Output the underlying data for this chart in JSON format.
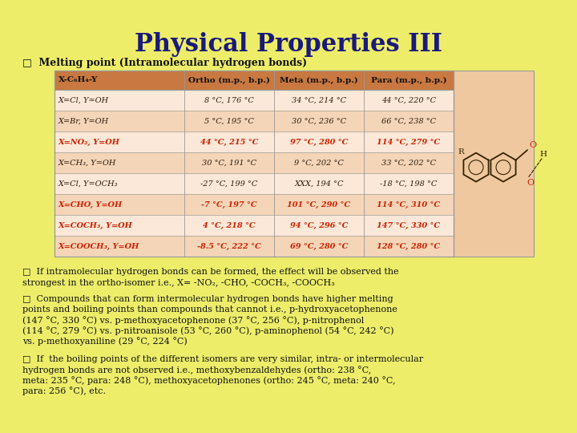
{
  "title": "Physical Properties III",
  "subtitle": "□  Melting point (Intramolecular hydrogen bonds)",
  "bg_color": "#eded6a",
  "table_header_bg": "#c87840",
  "table_row_light": "#f5d5b8",
  "table_row_lighter": "#fce8d8",
  "table_border": "#999999",
  "table_header_text": "#111111",
  "table_normal_text": "#2a1a0a",
  "table_red_text": "#cc2200",
  "mol_bg": "#f0c8a0",
  "col_headers": [
    "X-C₆H₄-Y",
    "Ortho (m.p., b.p.)",
    "Meta (m.p., b.p.)",
    "Para (m.p., b.p.)"
  ],
  "table_rows": [
    {
      "compound": "X=Cl, Y=OH",
      "ortho": "8 °C, 176 °C",
      "meta": "34 °C, 214 °C",
      "para": "44 °C, 220 °C",
      "red": false
    },
    {
      "compound": "X=Br, Y=OH",
      "ortho": "5 °C, 195 °C",
      "meta": "30 °C, 236 °C",
      "para": "66 °C, 238 °C",
      "red": false
    },
    {
      "compound": "X=NO₂, Y=OH",
      "ortho": "44 °C, 215 °C",
      "meta": "97 °C, 280 °C",
      "para": "114 °C, 279 °C",
      "red": true
    },
    {
      "compound": "X=CH₃, Y=OH",
      "ortho": "30 °C, 191 °C",
      "meta": "9 °C, 202 °C",
      "para": "33 °C, 202 °C",
      "red": false
    },
    {
      "compound": "X=Cl, Y=OCH₃",
      "ortho": "-27 °C, 199 °C",
      "meta": "XXX, 194 °C",
      "para": "-18 °C, 198 °C",
      "red": false
    },
    {
      "compound": "X=CHO, Y=OH",
      "ortho": "-7 °C, 197 °C",
      "meta": "101 °C, 290 °C",
      "para": "114 °C, 310 °C",
      "red": true
    },
    {
      "compound": "X=COCH₃, Y=OH",
      "ortho": "4 °C, 218 °C",
      "meta": "94 °C, 296 °C",
      "para": "147 °C, 330 °C",
      "red": true
    },
    {
      "compound": "X=COOCH₃, Y=OH",
      "ortho": "-8.5 °C, 222 °C",
      "meta": "69 °C, 280 °C",
      "para": "128 °C, 280 °C",
      "red": true
    }
  ],
  "bullet1": "□  If intramolecular hydrogen bonds can be formed, the effect will be observed the\n    strongest in the ortho-isomer i.e., X= -NO₂, -CHO, -COCH₃, -COOCH₃",
  "bullet2": "□  Compounds that can form intermolecular hydrogen bonds have higher melting\n    points and boiling points than compounds that cannot i.e., p-hydroxyacetophenone\n    (147 °C, 330 °C) vs. p-methoxyacetophenone (37 °C, 256 °C), p-nitrophenol\n    (114 °C, 279 °C) vs. p-nitroanisole (53 °C, 260 °C), p-aminophenol (54 °C, 242 °C)\n    vs. p-methoxyaniline (29 °C, 224 °C)",
  "bullet3": "□  If  the boiling points of the different isomers are very similar, intra- or intermolecular\n    hydrogen bonds are not observed i.e., methoxybenzaldehydes (ortho: 238 °C,\n    meta: 235 °C, para: 248 °C), methoxyacetophenones (ortho: 245 °C, meta: 240 °C,\n    para: 256 °C), etc."
}
